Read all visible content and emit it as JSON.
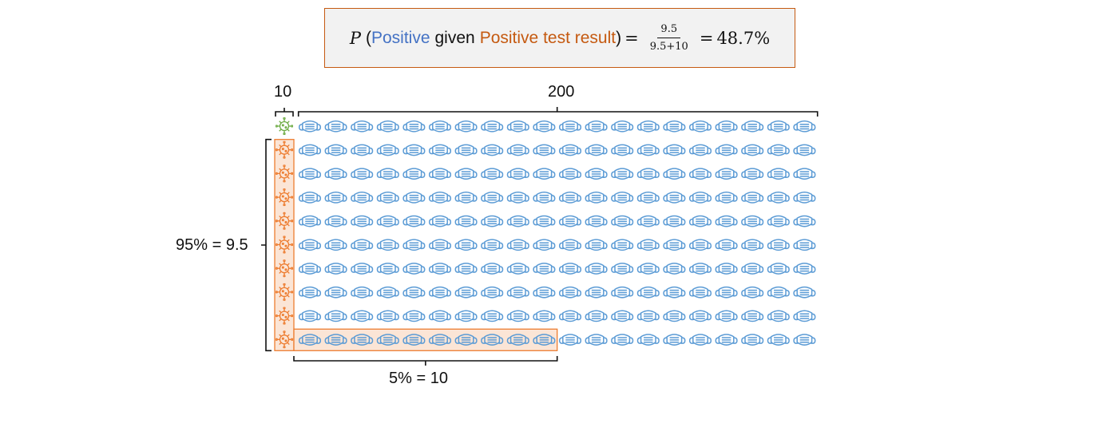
{
  "formula": {
    "p": "P",
    "open": "(",
    "positive": "Positive",
    "given": "given",
    "positive_test": "Positive test result",
    "close": ")",
    "equals": "=",
    "numerator": "9.5",
    "denominator": "9.5+10",
    "equals2": "=",
    "result": "48.7%"
  },
  "labels": {
    "top_small": "10",
    "top_large": "200",
    "left": "95% = 9.5",
    "bottom": "5% = 10"
  },
  "grid": {
    "rows": 10,
    "virus_columns": 1,
    "mask_columns": 20,
    "highlighted_positive_rows": 9,
    "highlighted_false_positive_columns": 10
  },
  "colors": {
    "virus_highlight": "#ed7d31",
    "virus_normal": "#70ad47",
    "mask": "#5b9bd5",
    "highlight_fill": "#fbe5d6",
    "highlight_border": "#ed7d31",
    "positive_text": "#4472c4",
    "test_text": "#c55a11"
  },
  "icons": {
    "infected": "virus-icon",
    "healthy": "face-mask-icon"
  }
}
